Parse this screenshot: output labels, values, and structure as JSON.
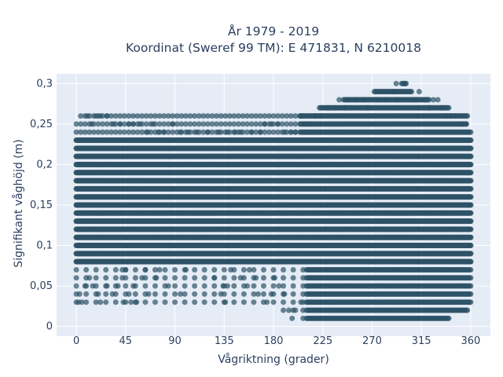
{
  "chart_data": {
    "type": "scatter",
    "title_lines": [
      "År 1979 - 2019",
      "Koordinat (Sweref 99 TM): E 471831, N 6210018"
    ],
    "xlabel": "Vågriktning (grader)",
    "ylabel": "Signifikant våghöjd (m)",
    "xlim": [
      -18,
      378
    ],
    "ylim": [
      -0.012,
      0.312
    ],
    "xticks": [
      0,
      45,
      90,
      135,
      180,
      225,
      270,
      315,
      360
    ],
    "xtick_labels": [
      "0",
      "45",
      "90",
      "135",
      "180",
      "225",
      "270",
      "315",
      "360"
    ],
    "yticks": [
      0,
      0.05,
      0.1,
      0.15,
      0.2,
      0.25,
      0.3
    ],
    "ytick_labels": [
      "0",
      "0,05",
      "0,1",
      "0,15",
      "0,2",
      "0,25",
      "0,3"
    ],
    "grid": true,
    "legend": "none",
    "colors": {
      "marker": "#2e5266",
      "plot_background": "#e5ecf6",
      "grid": "#ffffff",
      "text": "#2a3f5f"
    },
    "series": [
      {
        "marker_opacity": 0.7,
        "height_levels": [
          0.01,
          0.02,
          0.03,
          0.04,
          0.05,
          0.06,
          0.07,
          0.08,
          0.09,
          0.1,
          0.11,
          0.12,
          0.13,
          0.14,
          0.15,
          0.16,
          0.17,
          0.18,
          0.19,
          0.2,
          0.21,
          0.22,
          0.23,
          0.24,
          0.25,
          0.26,
          0.27,
          0.28,
          0.29,
          0.3
        ],
        "direction_range_per_level": [
          [
            202,
            340
          ],
          [
            186,
            357
          ],
          [
            0,
            360
          ],
          [
            0,
            360
          ],
          [
            0,
            360
          ],
          [
            0,
            360
          ],
          [
            0,
            360
          ],
          [
            0,
            360
          ],
          [
            0,
            360
          ],
          [
            0,
            360
          ],
          [
            0,
            360
          ],
          [
            0,
            360
          ],
          [
            0,
            360
          ],
          [
            0,
            360
          ],
          [
            0,
            360
          ],
          [
            0,
            360
          ],
          [
            0,
            360
          ],
          [
            0,
            360
          ],
          [
            0,
            360
          ],
          [
            0,
            360
          ],
          [
            0,
            360
          ],
          [
            0,
            360
          ],
          [
            0,
            360
          ],
          [
            0,
            360
          ],
          [
            0,
            356
          ],
          [
            2,
            357
          ],
          [
            222,
            340
          ],
          [
            244,
            322
          ],
          [
            272,
            306
          ],
          [
            297,
            301
          ]
        ],
        "main_band_levels": [
          0.08,
          0.09,
          0.1,
          0.11,
          0.12,
          0.13,
          0.14,
          0.15,
          0.16,
          0.17,
          0.18,
          0.19,
          0.2,
          0.21,
          0.22,
          0.23
        ],
        "main_band_range": [
          0,
          360
        ],
        "sparse_points": [
          [
            2,
            0.03
          ],
          [
            3,
            0.04
          ],
          [
            5,
            0.03
          ],
          [
            8,
            0.05
          ],
          [
            12,
            0.06
          ],
          [
            15,
            0.05
          ],
          [
            20,
            0.04
          ],
          [
            22,
            0.03
          ],
          [
            28,
            0.05
          ],
          [
            33,
            0.04
          ],
          [
            38,
            0.05
          ],
          [
            42,
            0.06
          ],
          [
            43,
            0.03
          ],
          [
            48,
            0.04
          ],
          [
            50,
            0.03
          ],
          [
            52,
            0.05
          ],
          [
            55,
            0.03
          ],
          [
            60,
            0.06
          ],
          [
            63,
            0.07
          ],
          [
            66,
            0.04
          ],
          [
            42,
            0.07
          ],
          [
            45,
            0.07
          ],
          [
            50,
            0.09
          ],
          [
            55,
            0.09
          ],
          [
            58,
            0.1
          ],
          [
            73,
            0.06
          ],
          [
            76,
            0.07
          ],
          [
            84,
            0.05
          ],
          [
            95,
            0.04
          ],
          [
            100,
            0.07
          ],
          [
            102,
            0.08
          ],
          [
            108,
            0.08
          ],
          [
            110,
            0.1
          ],
          [
            126,
            0.06
          ],
          [
            132,
            0.04
          ],
          [
            134,
            0.05
          ],
          [
            136,
            0.03
          ],
          [
            138,
            0.05
          ],
          [
            141,
            0.07
          ],
          [
            146,
            0.08
          ],
          [
            150,
            0.06
          ],
          [
            156,
            0.05
          ],
          [
            158,
            0.07
          ],
          [
            164,
            0.06
          ],
          [
            166,
            0.04
          ],
          [
            174,
            0.03
          ],
          [
            178,
            0.04
          ],
          [
            181,
            0.06
          ],
          [
            185,
            0.05
          ],
          [
            190,
            0.04
          ],
          [
            194,
            0.02
          ],
          [
            197,
            0.01
          ],
          [
            200,
            0.02
          ],
          [
            205,
            0.03
          ],
          [
            10,
            0.26
          ],
          [
            14,
            0.25
          ],
          [
            18,
            0.26
          ],
          [
            22,
            0.26
          ],
          [
            28,
            0.26
          ],
          [
            34,
            0.25
          ],
          [
            40,
            0.25
          ],
          [
            48,
            0.25
          ],
          [
            52,
            0.25
          ],
          [
            58,
            0.25
          ],
          [
            65,
            0.24
          ],
          [
            70,
            0.25
          ],
          [
            75,
            0.24
          ],
          [
            80,
            0.24
          ],
          [
            88,
            0.25
          ],
          [
            95,
            0.24
          ],
          [
            102,
            0.24
          ],
          [
            110,
            0.24
          ],
          [
            120,
            0.24
          ],
          [
            130,
            0.24
          ],
          [
            138,
            0.24
          ],
          [
            145,
            0.24
          ],
          [
            150,
            0.24
          ],
          [
            160,
            0.24
          ],
          [
            168,
            0.24
          ],
          [
            172,
            0.25
          ],
          [
            178,
            0.25
          ],
          [
            184,
            0.25
          ],
          [
            190,
            0.24
          ],
          [
            196,
            0.24
          ],
          [
            200,
            0.24
          ],
          [
            205,
            0.26
          ],
          [
            210,
            0.25
          ],
          [
            214,
            0.25
          ],
          [
            218,
            0.26
          ],
          [
            224,
            0.26
          ],
          [
            230,
            0.27
          ],
          [
            236,
            0.27
          ],
          [
            245,
            0.27
          ],
          [
            255,
            0.28
          ],
          [
            262,
            0.28
          ],
          [
            266,
            0.27
          ],
          [
            275,
            0.28
          ],
          [
            283,
            0.28
          ],
          [
            290,
            0.29
          ],
          [
            293,
            0.28
          ],
          [
            310,
            0.28
          ],
          [
            313,
            0.29
          ],
          [
            318,
            0.28
          ],
          [
            322,
            0.27
          ],
          [
            326,
            0.28
          ],
          [
            330,
            0.28
          ],
          [
            334,
            0.27
          ],
          [
            338,
            0.26
          ],
          [
            342,
            0.26
          ],
          [
            346,
            0.26
          ],
          [
            352,
            0.25
          ],
          [
            356,
            0.25
          ],
          [
            300,
            0.3
          ],
          [
            292,
            0.3
          ],
          [
            248,
            0.28
          ],
          [
            240,
            0.28
          ]
        ]
      }
    ]
  }
}
